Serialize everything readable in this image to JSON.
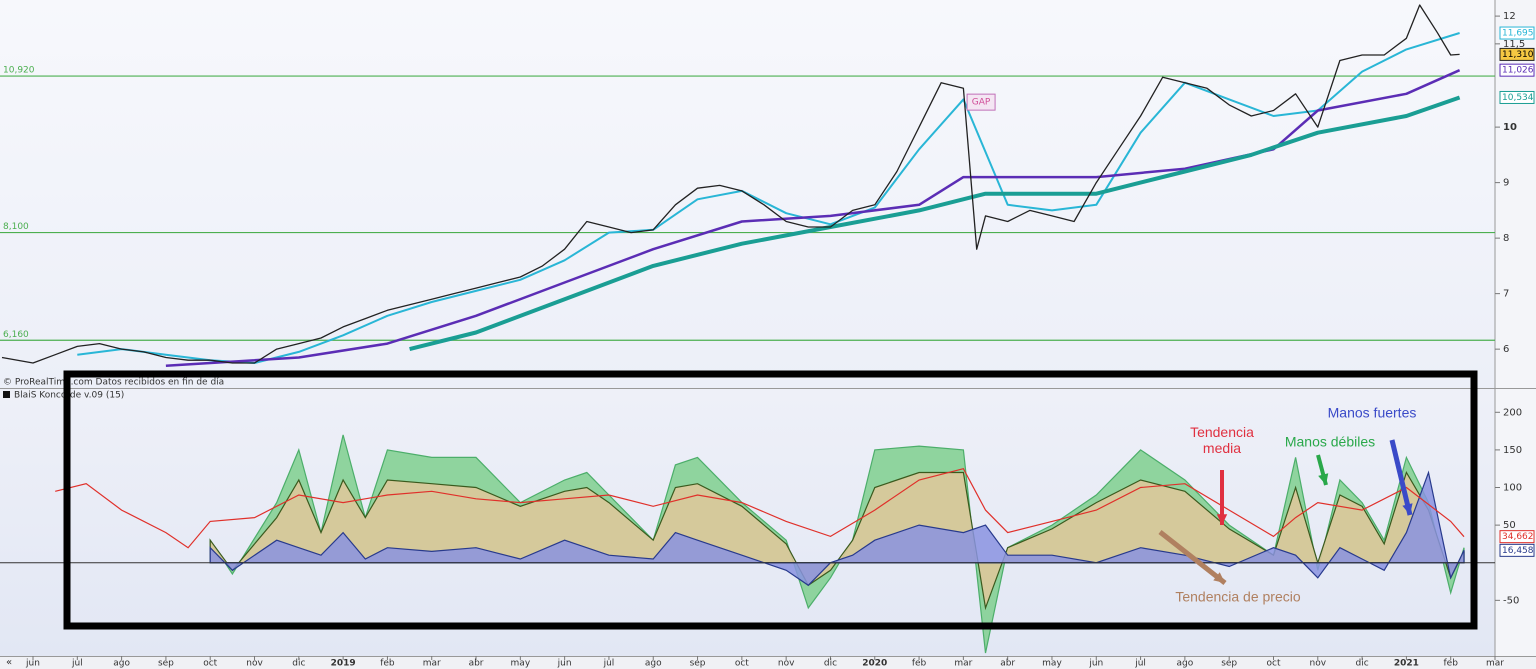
{
  "controls": {
    "scroll_left": "«"
  },
  "chart_data": [
    {
      "type": "line",
      "credit": "© ProRealTime.com Datos recibidos en fin de día",
      "annotation": {
        "text": "GAP",
        "x": 21.4,
        "y": 10.45
      },
      "xlim": [
        -0.745,
        33.0
      ],
      "ylim": [
        5.3,
        12.29
      ],
      "yticks": [
        6,
        7,
        8,
        9,
        10,
        {
          "value": 11.5,
          "label": "11,5"
        },
        12
      ],
      "levels": [
        {
          "value": 10.92,
          "label": "10,920"
        },
        {
          "value": 8.1,
          "label": "8,100"
        },
        {
          "value": 6.16,
          "label": "6,160"
        }
      ],
      "level_color": "#4caf50",
      "series": [
        {
          "color": "#29b6d6",
          "width": 2,
          "x": [
            1,
            2,
            3,
            4,
            5,
            6,
            7,
            8,
            9,
            10,
            11,
            12,
            13,
            14,
            15,
            16,
            17,
            18,
            19,
            20,
            21,
            22,
            23,
            24,
            25,
            26,
            27,
            28,
            29,
            30,
            31,
            32.2
          ],
          "values": [
            5.9,
            6.0,
            5.9,
            5.8,
            5.75,
            5.95,
            6.25,
            6.6,
            6.85,
            7.05,
            7.25,
            7.6,
            8.1,
            8.15,
            8.7,
            8.85,
            8.45,
            8.25,
            8.55,
            9.6,
            10.5,
            8.6,
            8.5,
            8.6,
            9.9,
            10.8,
            10.5,
            10.2,
            10.3,
            11.0,
            11.4,
            11.695
          ],
          "last": {
            "value": 11.695,
            "label": "11,695"
          }
        },
        {
          "color": "#5b2db5",
          "width": 2.5,
          "x": [
            3,
            6,
            8,
            10,
            12,
            14,
            16,
            18,
            20,
            21,
            24,
            26,
            28,
            29,
            31,
            32.2
          ],
          "values": [
            5.7,
            5.85,
            6.1,
            6.6,
            7.2,
            7.8,
            8.3,
            8.4,
            8.6,
            9.1,
            9.1,
            9.25,
            9.6,
            10.3,
            10.6,
            11.026
          ],
          "last": {
            "value": 11.026,
            "label": "11,026"
          }
        },
        {
          "color": "#1a9e94",
          "width": 4,
          "x": [
            8.5,
            10,
            12,
            14,
            16,
            18,
            20,
            21.5,
            24,
            26,
            27.5,
            29,
            31,
            32.2
          ],
          "values": [
            6.0,
            6.3,
            6.9,
            7.5,
            7.9,
            8.2,
            8.5,
            8.8,
            8.8,
            9.2,
            9.5,
            9.9,
            10.2,
            10.534
          ],
          "last": {
            "value": 10.534,
            "label": "10,534"
          }
        },
        {
          "color": "#222222",
          "width": 1.3,
          "label_fill": "#f5c842",
          "x": [
            -0.7,
            0,
            0.5,
            1,
            1.5,
            2,
            2.5,
            3,
            3.5,
            4,
            4.5,
            5,
            5.5,
            6,
            6.5,
            7,
            7.5,
            8,
            8.5,
            9,
            9.5,
            10,
            10.5,
            11,
            11.5,
            12,
            12.5,
            13,
            13.5,
            14,
            14.5,
            15,
            15.5,
            16,
            16.5,
            17,
            17.5,
            18,
            18.5,
            19,
            19.5,
            20,
            20.5,
            21,
            21.3,
            21.5,
            22,
            22.5,
            23,
            23.5,
            24,
            24.5,
            25,
            25.5,
            26,
            26.5,
            27,
            27.5,
            28,
            28.5,
            29,
            29.5,
            30,
            30.5,
            31,
            31.3,
            31.7,
            32,
            32.2
          ],
          "values": [
            5.85,
            5.75,
            5.9,
            6.05,
            6.1,
            6.0,
            5.95,
            5.85,
            5.8,
            5.8,
            5.75,
            5.75,
            6.0,
            6.1,
            6.2,
            6.4,
            6.55,
            6.7,
            6.8,
            6.9,
            7.0,
            7.1,
            7.2,
            7.3,
            7.5,
            7.8,
            8.3,
            8.2,
            8.1,
            8.15,
            8.6,
            8.9,
            8.95,
            8.85,
            8.6,
            8.3,
            8.2,
            8.2,
            8.5,
            8.6,
            9.2,
            10.0,
            10.8,
            10.7,
            7.8,
            8.4,
            8.3,
            8.5,
            8.4,
            8.3,
            9.0,
            9.6,
            10.2,
            10.9,
            10.8,
            10.7,
            10.4,
            10.2,
            10.3,
            10.6,
            10.0,
            11.2,
            11.3,
            11.3,
            11.6,
            12.2,
            11.7,
            11.3,
            11.31
          ],
          "last": {
            "value": 11.31,
            "label": "11,310"
          }
        }
      ]
    },
    {
      "type": "area",
      "title": "BlaiS Koncorde v.09 (15)",
      "xlim": [
        -0.745,
        33.0
      ],
      "ylim": [
        -124,
        219
      ],
      "yticks": [
        -50,
        50,
        100,
        150,
        200
      ],
      "xticks": [
        {
          "value": 0,
          "label": "jun"
        },
        {
          "value": 1,
          "label": "jul"
        },
        {
          "value": 2,
          "label": "ago"
        },
        {
          "value": 3,
          "label": "sep"
        },
        {
          "value": 4,
          "label": "oct"
        },
        {
          "value": 5,
          "label": "nov"
        },
        {
          "value": 6,
          "label": "dic"
        },
        {
          "value": 7,
          "label": "2019"
        },
        {
          "value": 8,
          "label": "feb"
        },
        {
          "value": 9,
          "label": "mar"
        },
        {
          "value": 10,
          "label": "abr"
        },
        {
          "value": 11,
          "label": "may"
        },
        {
          "value": 12,
          "label": "jun"
        },
        {
          "value": 13,
          "label": "jul"
        },
        {
          "value": 14,
          "label": "ago"
        },
        {
          "value": 15,
          "label": "sep"
        },
        {
          "value": 16,
          "label": "oct"
        },
        {
          "value": 17,
          "label": "nov"
        },
        {
          "value": 18,
          "label": "dic"
        },
        {
          "value": 19,
          "label": "2020"
        },
        {
          "value": 20,
          "label": "feb"
        },
        {
          "value": 21,
          "label": "mar"
        },
        {
          "value": 22,
          "label": "abr"
        },
        {
          "value": 23,
          "label": "may"
        },
        {
          "value": 24,
          "label": "jun"
        },
        {
          "value": 25,
          "label": "jul"
        },
        {
          "value": 26,
          "label": "ago"
        },
        {
          "value": 27,
          "label": "sep"
        },
        {
          "value": 28,
          "label": "oct"
        },
        {
          "value": 29,
          "label": "nov"
        },
        {
          "value": 30,
          "label": "dic"
        },
        {
          "value": 31,
          "label": "2021"
        },
        {
          "value": 32,
          "label": "feb"
        },
        {
          "value": 33,
          "label": "mar"
        }
      ],
      "x": [
        4,
        4.5,
        5.5,
        6,
        6.5,
        7,
        7.5,
        8,
        9,
        10,
        11,
        12,
        12.5,
        13,
        14,
        14.5,
        15,
        16,
        17,
        17.5,
        18,
        18.5,
        19,
        20,
        21,
        21.5,
        22,
        23,
        24,
        25,
        26,
        27,
        28,
        28.5,
        29,
        29.5,
        30,
        30.5,
        31,
        31.5,
        32,
        32.3
      ],
      "annotations": [
        "Tendencia media",
        "Manos débiles",
        "Manos fuertes",
        "Tendencia de precio"
      ],
      "series": [
        {
          "color": "#4cae6a",
          "fill": "#7fcf8e",
          "values": [
            30,
            -15,
            80,
            150,
            40,
            170,
            60,
            150,
            140,
            140,
            80,
            110,
            120,
            90,
            30,
            130,
            140,
            80,
            30,
            -60,
            -20,
            30,
            150,
            155,
            150,
            -120,
            20,
            50,
            90,
            150,
            110,
            50,
            10,
            140,
            -10,
            110,
            80,
            30,
            140,
            80,
            -40,
            20
          ]
        },
        {
          "color": "#3a5a1e",
          "fill": "#e2c79a",
          "values": [
            30,
            -10,
            60,
            110,
            40,
            110,
            60,
            110,
            105,
            100,
            75,
            95,
            100,
            80,
            30,
            100,
            105,
            75,
            25,
            -30,
            -10,
            30,
            100,
            120,
            120,
            -60,
            20,
            45,
            80,
            110,
            95,
            45,
            10,
            100,
            0,
            90,
            75,
            25,
            120,
            70,
            -20,
            15
          ]
        },
        {
          "color": "#283a8c",
          "fill": "#8a93e0",
          "values": [
            20,
            -10,
            30,
            20,
            10,
            40,
            5,
            20,
            15,
            20,
            5,
            30,
            20,
            10,
            5,
            40,
            30,
            10,
            -10,
            -30,
            0,
            10,
            30,
            50,
            40,
            50,
            10,
            10,
            0,
            20,
            10,
            -5,
            20,
            10,
            -20,
            20,
            5,
            -10,
            40,
            120,
            -20,
            16.458
          ],
          "last": {
            "value": 16.458,
            "label": "16,458"
          }
        },
        {
          "color": "#e0302a",
          "line_only": true,
          "x": [
            0.5,
            1.2,
            2,
            3,
            3.5,
            4,
            5,
            6,
            7,
            8,
            9,
            10,
            11,
            12,
            13,
            14,
            15,
            16,
            17,
            18,
            19,
            20,
            21,
            21.5,
            22,
            23,
            24,
            25,
            26,
            27,
            28,
            28.5,
            29,
            30,
            31,
            32,
            32.3
          ],
          "values": [
            95,
            105,
            70,
            40,
            20,
            55,
            60,
            90,
            80,
            90,
            95,
            85,
            80,
            85,
            90,
            75,
            90,
            80,
            55,
            35,
            70,
            110,
            125,
            70,
            40,
            55,
            70,
            100,
            105,
            70,
            35,
            60,
            80,
            70,
            100,
            55,
            34.662
          ],
          "last": {
            "value": 34.662,
            "label": "34,662"
          }
        }
      ]
    }
  ]
}
